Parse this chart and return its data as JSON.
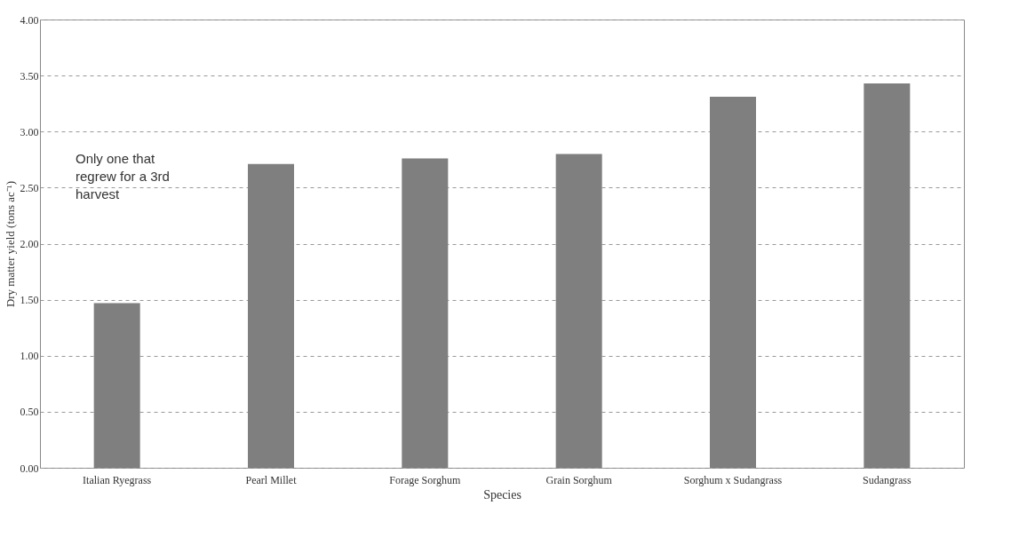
{
  "chart_data": {
    "type": "bar",
    "xlabel": "Species",
    "ylabel": "Dry matter yield (tons ac⁻¹)",
    "categories": [
      "Italian Ryegrass",
      "Pearl Millet",
      "Forage Sorghum",
      "Grain Sorghum",
      "Sorghum x Sudangrass",
      "Sudangrass"
    ],
    "values": [
      1.47,
      2.71,
      2.76,
      2.8,
      3.31,
      3.43
    ],
    "color": "#7f7f7f",
    "ylim": [
      0,
      4
    ],
    "yticks": [
      {
        "value": 0,
        "label": "0.00"
      },
      {
        "value": 0.5,
        "label": "0.50"
      },
      {
        "value": 1,
        "label": "1.00"
      },
      {
        "value": 1.5,
        "label": "1.50"
      },
      {
        "value": 2,
        "label": "2.00"
      },
      {
        "value": 2.5,
        "label": "2.50"
      },
      {
        "value": 3,
        "label": "3.00"
      },
      {
        "value": 3.5,
        "label": "3.50"
      },
      {
        "value": 4,
        "label": "4.00"
      }
    ],
    "grid": "y",
    "annotations": [
      "Only one that regrew for a 3rd harvest"
    ]
  }
}
